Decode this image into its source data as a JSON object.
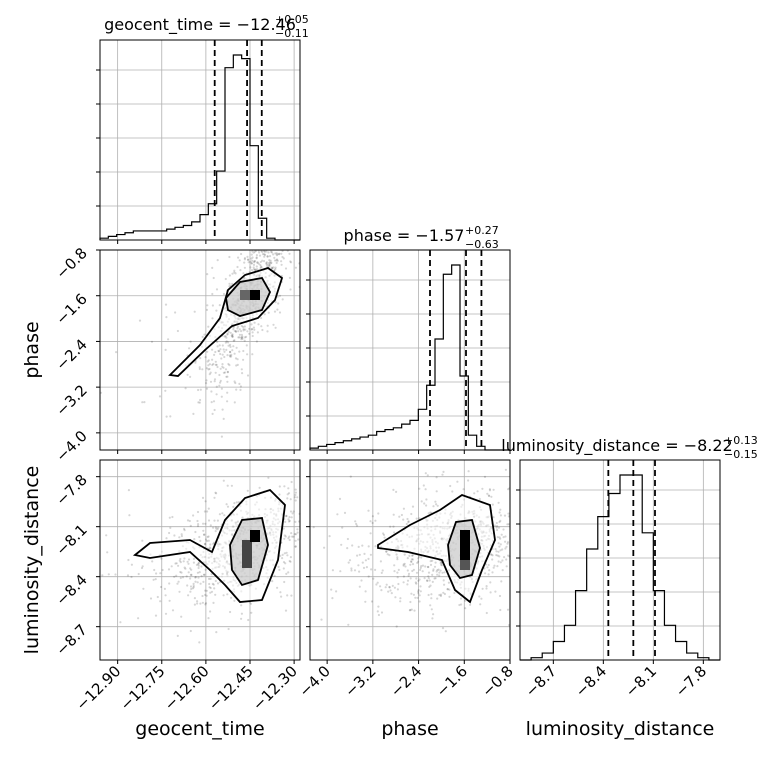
{
  "chart_data": {
    "type": "corner",
    "parameters": [
      {
        "name": "geocent_time",
        "axis_label": "geocent_time",
        "title_prefix": "geocent_time = ",
        "median": "−12.46",
        "plus": "+0.05",
        "minus": "−0.11",
        "range": [
          -12.96,
          -12.28
        ],
        "ticks": [
          -12.9,
          -12.75,
          -12.6,
          -12.45,
          -12.3
        ],
        "tick_labels": [
          "−12.90",
          "−12.75",
          "−12.60",
          "−12.45",
          "−12.30"
        ],
        "quantiles": [
          -12.57,
          -12.46,
          -12.41
        ],
        "hist_values": [
          1,
          2,
          3,
          4,
          5,
          5,
          5,
          5,
          6,
          7,
          8,
          10,
          14,
          20,
          38,
          95,
          102,
          100,
          52,
          12,
          1,
          0,
          0,
          0
        ]
      },
      {
        "name": "phase",
        "axis_label": "phase",
        "title_prefix": "phase = ",
        "median": "−1.57",
        "plus": "+0.27",
        "minus": "−0.63",
        "range": [
          -4.3,
          -0.8
        ],
        "ticks": [
          -4.0,
          -3.2,
          -2.4,
          -1.6,
          -0.8
        ],
        "tick_labels": [
          "−4.0",
          "−3.2",
          "−2.4",
          "−1.6",
          "−0.8"
        ],
        "quantiles": [
          -2.2,
          -1.57,
          -1.3
        ],
        "hist_values": [
          1,
          2,
          3,
          4,
          5,
          6,
          7,
          8,
          10,
          11,
          12,
          14,
          16,
          22,
          35,
          60,
          95,
          100,
          40,
          8,
          2,
          0,
          0,
          0
        ]
      },
      {
        "name": "luminosity_distance",
        "axis_label": "luminosity_distance",
        "title_prefix": "luminosity_distance = ",
        "median": "−8.22",
        "plus": "+0.13",
        "minus": "−0.15",
        "range": [
          -8.9,
          -7.7
        ],
        "ticks": [
          -8.7,
          -8.4,
          -8.1,
          -7.8
        ],
        "tick_labels": [
          "−8.7",
          "−8.4",
          "−8.1",
          "−7.8"
        ],
        "quantiles": [
          -8.37,
          -8.22,
          -8.09
        ],
        "hist_values": [
          0,
          1,
          3,
          8,
          15,
          30,
          48,
          62,
          72,
          80,
          80,
          55,
          30,
          15,
          8,
          3,
          1,
          0
        ]
      }
    ],
    "contour_levels": [
      "1-sigma",
      "2-sigma"
    ],
    "grid": true
  }
}
